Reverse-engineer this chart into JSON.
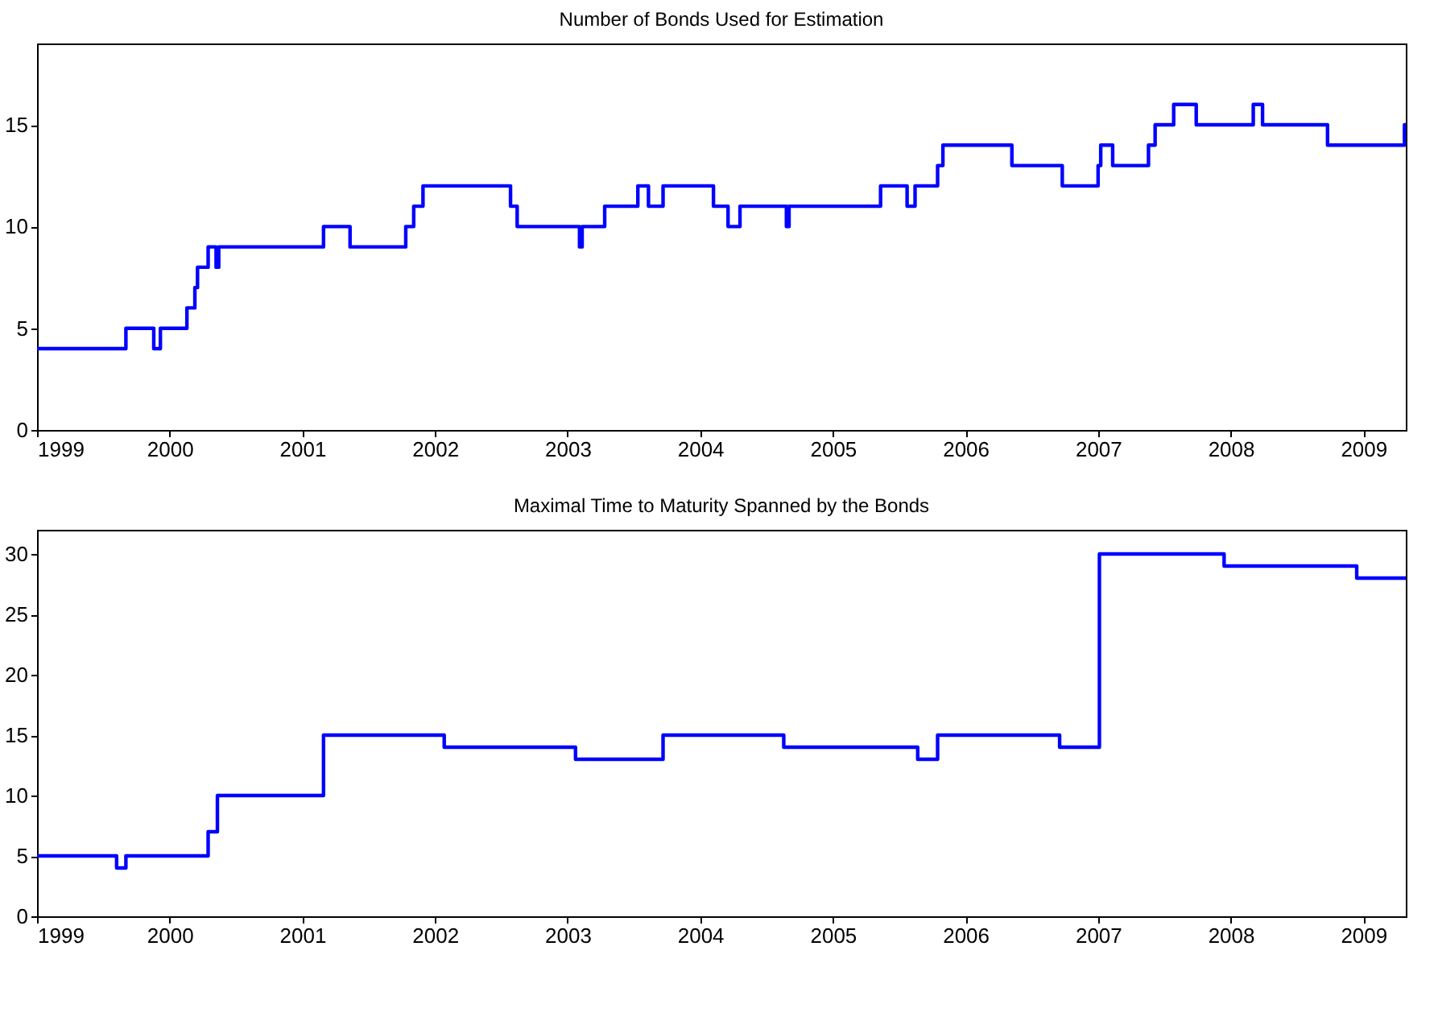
{
  "chart_data": [
    {
      "type": "step",
      "title": "Number of Bonds Used for Estimation",
      "x": [
        1999,
        1999.67,
        1999.88,
        1999.93,
        2000.13,
        2000.19,
        2000.21,
        2000.29,
        2000.35,
        2000.37,
        2001.16,
        2001.36,
        2001.78,
        2001.84,
        2001.91,
        2002.57,
        2002.62,
        2003.09,
        2003.11,
        2003.28,
        2003.53,
        2003.61,
        2003.72,
        2004.1,
        2004.21,
        2004.3,
        2004.65,
        2004.67,
        2005.36,
        2005.56,
        2005.62,
        2005.79,
        2005.83,
        2006.35,
        2006.73,
        2007.0,
        2007.02,
        2007.11,
        2007.38,
        2007.43,
        2007.57,
        2007.74,
        2008.17,
        2008.24,
        2008.73,
        2009.31,
        2009.32
      ],
      "series": [
        {
          "color": "#0000ff",
          "values": [
            4,
            5,
            4,
            5,
            6,
            7,
            8,
            9,
            8,
            9,
            10,
            9,
            10,
            11,
            12,
            11,
            10,
            9,
            10,
            11,
            12,
            11,
            12,
            11,
            10,
            11,
            10,
            11,
            12,
            11,
            12,
            13,
            14,
            13,
            12,
            13,
            14,
            13,
            14,
            15,
            16,
            15,
            16,
            15,
            14,
            15,
            15
          ]
        }
      ],
      "xlim": [
        1999,
        2009.32
      ],
      "xticks": [
        1999,
        2000,
        2001,
        2002,
        2003,
        2004,
        2005,
        2006,
        2007,
        2008,
        2009
      ],
      "ylim": [
        0,
        19
      ],
      "yticks": [
        0,
        5,
        10,
        15
      ],
      "grid": false,
      "marker": "none",
      "line_style": "solid"
    },
    {
      "type": "step",
      "title": "Maximal Time to Maturity Spanned by the Bonds",
      "x": [
        1999,
        1999.6,
        1999.67,
        2000.29,
        2000.36,
        2001.16,
        2002.07,
        2003.06,
        2003.72,
        2004.63,
        2005.64,
        2005.79,
        2006.71,
        2007.01,
        2007.95,
        2008.95,
        2009.32
      ],
      "series": [
        {
          "color": "#0000ff",
          "values": [
            5,
            4,
            5,
            7,
            10,
            15,
            14,
            13,
            15,
            14,
            13,
            15,
            14,
            30,
            29,
            28,
            28
          ]
        }
      ],
      "xlim": [
        1999,
        2009.32
      ],
      "xticks": [
        1999,
        2000,
        2001,
        2002,
        2003,
        2004,
        2005,
        2006,
        2007,
        2008,
        2009
      ],
      "ylim": [
        0,
        32
      ],
      "yticks": [
        0,
        5,
        10,
        15,
        20,
        25,
        30
      ],
      "grid": false,
      "marker": "none",
      "line_style": "solid"
    }
  ]
}
